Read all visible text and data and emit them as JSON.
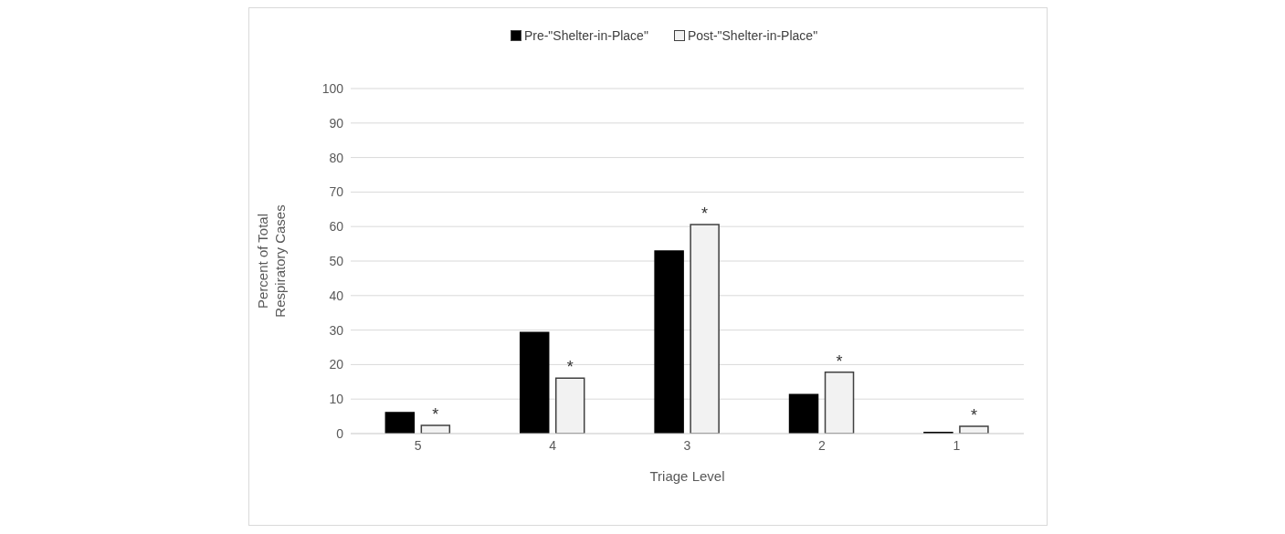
{
  "chart_data": {
    "type": "bar",
    "xlabel": "Triage Level",
    "ylabel": "Percent of Total Respiratory Cases",
    "categories": [
      "5",
      "4",
      "3",
      "2",
      "1"
    ],
    "series": [
      {
        "name": "Pre-\"Shelter-in-Place\"",
        "color": "#000000",
        "values": [
          6.1,
          29.3,
          52.9,
          11.3,
          0.3
        ]
      },
      {
        "name": "Post-\"Shelter-in-Place\"",
        "color": "#f2f2f2",
        "values": [
          2.4,
          16.1,
          60.6,
          17.8,
          2.1
        ]
      }
    ],
    "ylim": [
      0,
      100
    ],
    "yticks": [
      0,
      10,
      20,
      30,
      40,
      50,
      60,
      70,
      80,
      90,
      100
    ],
    "grid": "y",
    "legend": "top",
    "annotations": [
      {
        "text": "*",
        "x": "5",
        "y": 2.4
      },
      {
        "text": "*",
        "x": "4",
        "y": 16.1
      },
      {
        "text": "*",
        "x": "3",
        "y": 60.6
      },
      {
        "text": "*",
        "x": "2",
        "y": 17.8
      },
      {
        "text": "*",
        "x": "1",
        "y": 2.1
      }
    ]
  }
}
